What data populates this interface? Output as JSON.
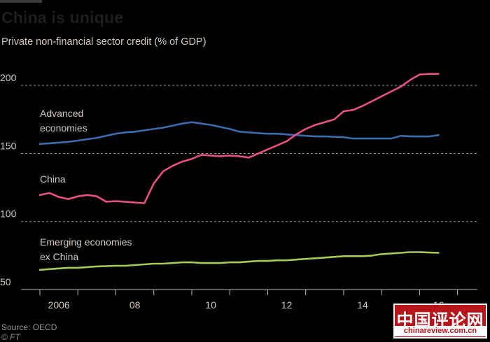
{
  "chart_data": {
    "type": "line",
    "title": "China is unique",
    "subtitle": "Private non-financial sector credit (% of GDP)",
    "x_tick_labels": [
      "2006",
      "08",
      "10",
      "12",
      "14",
      "16"
    ],
    "xlim": [
      2005.5,
      2016.875
    ],
    "ylim": [
      50,
      215
    ],
    "y_ticks": [
      50,
      100,
      150,
      200
    ],
    "grid": "horizontal-dashed",
    "legend": "inline-labels",
    "series": [
      {
        "name": "Advanced economies",
        "color": "#3d6bb0",
        "x": [
          2005.5,
          2005.75,
          2006.0,
          2006.25,
          2006.5,
          2006.75,
          2007.0,
          2007.25,
          2007.5,
          2007.75,
          2008.0,
          2008.25,
          2008.5,
          2008.75,
          2009.0,
          2009.25,
          2009.5,
          2009.75,
          2010.0,
          2010.25,
          2010.5,
          2010.75,
          2011.0,
          2011.25,
          2011.5,
          2011.75,
          2012.0,
          2012.25,
          2012.5,
          2012.75,
          2013.0,
          2013.25,
          2013.5,
          2013.75,
          2014.0,
          2014.25,
          2014.5,
          2014.75,
          2015.0,
          2015.25,
          2015.5,
          2015.75,
          2016.0
        ],
        "y": [
          157,
          157.5,
          158,
          158.5,
          159.5,
          160.5,
          161.5,
          163,
          164.5,
          165.5,
          166,
          167,
          168,
          169,
          170.5,
          172,
          173,
          172,
          171,
          169.5,
          168,
          166,
          165.5,
          165,
          164.5,
          164.5,
          164,
          163.5,
          163,
          162.5,
          162.5,
          162.3,
          162,
          161,
          161,
          161,
          161,
          161,
          163,
          162.5,
          162.5,
          162.5,
          163.5
        ]
      },
      {
        "name": "China",
        "color": "#e8508a",
        "x": [
          2005.5,
          2005.75,
          2006.0,
          2006.25,
          2006.5,
          2006.75,
          2007.0,
          2007.25,
          2007.5,
          2007.75,
          2008.0,
          2008.25,
          2008.5,
          2008.75,
          2009.0,
          2009.25,
          2009.5,
          2009.75,
          2010.0,
          2010.25,
          2010.5,
          2010.75,
          2011.0,
          2011.25,
          2011.5,
          2011.75,
          2012.0,
          2012.25,
          2012.5,
          2012.75,
          2013.0,
          2013.25,
          2013.5,
          2013.75,
          2014.0,
          2014.25,
          2014.5,
          2014.75,
          2015.0,
          2015.25,
          2015.5,
          2015.75,
          2016.0
        ],
        "y": [
          119.5,
          121,
          118,
          116.5,
          118.5,
          119.5,
          118.5,
          114.5,
          115,
          114.5,
          114,
          113.5,
          128,
          137,
          141,
          144,
          146,
          149,
          148.5,
          148,
          148.5,
          148,
          147,
          150,
          153,
          156,
          159,
          164,
          168,
          171,
          173,
          175,
          181,
          182,
          185,
          188.5,
          192,
          195.5,
          199,
          204,
          208,
          208.5,
          208.5
        ]
      },
      {
        "name": "Emerging economies ex China",
        "color": "#a4cb52",
        "x": [
          2005.5,
          2005.75,
          2006.0,
          2006.25,
          2006.5,
          2006.75,
          2007.0,
          2007.25,
          2007.5,
          2007.75,
          2008.0,
          2008.25,
          2008.5,
          2008.75,
          2009.0,
          2009.25,
          2009.5,
          2009.75,
          2010.0,
          2010.25,
          2010.5,
          2010.75,
          2011.0,
          2011.25,
          2011.5,
          2011.75,
          2012.0,
          2012.25,
          2012.5,
          2012.75,
          2013.0,
          2013.25,
          2013.5,
          2013.75,
          2014.0,
          2014.25,
          2014.5,
          2014.75,
          2015.0,
          2015.25,
          2015.5,
          2015.75,
          2016.0
        ],
        "y": [
          64.5,
          65,
          65.5,
          66,
          66,
          66.5,
          67,
          67.2,
          67.5,
          67.5,
          68,
          68.5,
          69,
          69,
          69.5,
          70,
          70,
          69.5,
          69.5,
          69.5,
          70,
          70,
          70.5,
          71,
          71,
          71.5,
          71.5,
          72,
          72.5,
          73,
          73.5,
          74,
          74.5,
          74.5,
          74.5,
          75,
          76,
          76.5,
          77,
          77.5,
          77.5,
          77.2,
          77
        ]
      }
    ]
  },
  "labels": {
    "advanced_1": "Advanced",
    "advanced_2": "economies",
    "china": "China",
    "emerging_1": "Emerging economies",
    "emerging_2": "ex China"
  },
  "footer": {
    "source": "Source: OECD",
    "credit": "© FT"
  },
  "watermark": {
    "chinese": "中国评论网",
    "url": "chinareview.com.cn"
  }
}
